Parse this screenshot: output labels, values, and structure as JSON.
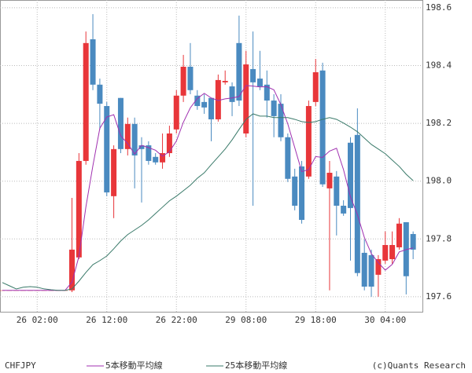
{
  "chart_data": {
    "type": "candlestick",
    "symbol": "CHFJPY",
    "credit": "(c)Quants Research",
    "categories": [
      null,
      null,
      null,
      null,
      null,
      "26 02:00",
      null,
      null,
      null,
      null,
      null,
      null,
      null,
      null,
      null,
      "26 12:00",
      null,
      null,
      null,
      null,
      null,
      null,
      null,
      null,
      null,
      "26 22:00",
      null,
      null,
      null,
      null,
      null,
      null,
      null,
      null,
      null,
      "29 08:00",
      null,
      null,
      null,
      null,
      null,
      null,
      null,
      null,
      null,
      "29 18:00",
      null,
      null,
      null,
      null,
      null,
      null,
      null,
      null,
      null,
      "30 04:00",
      null,
      null,
      null,
      null
    ],
    "open": [
      197.622,
      197.622,
      197.622,
      197.622,
      197.622,
      197.622,
      197.622,
      197.622,
      197.622,
      197.622,
      197.622,
      197.736,
      198.07,
      198.491,
      198.334,
      198.26,
      197.948,
      198.288,
      198.111,
      198.198,
      198.124,
      198.124,
      198.084,
      198.065,
      198.097,
      198.179,
      198.296,
      198.396,
      198.296,
      198.274,
      198.288,
      198.214,
      198.342,
      198.328,
      198.478,
      198.165,
      198.388,
      198.355,
      198.334,
      198.279,
      198.268,
      198.152,
      198.016,
      198.051,
      198.016,
      198.274,
      198.383,
      197.975,
      198.016,
      197.915,
      198.133,
      198.16,
      197.752,
      197.744,
      197.676,
      197.725,
      197.73,
      197.771,
      197.858,
      197.817
    ],
    "high": [
      197.622,
      197.622,
      197.622,
      197.622,
      197.622,
      197.622,
      197.622,
      197.622,
      197.622,
      197.622,
      197.942,
      198.097,
      198.518,
      198.578,
      198.355,
      198.274,
      198.124,
      198.288,
      198.22,
      198.22,
      198.152,
      198.138,
      198.097,
      198.165,
      198.192,
      198.315,
      198.437,
      198.478,
      198.315,
      198.301,
      198.288,
      198.369,
      198.383,
      198.342,
      198.573,
      198.451,
      198.518,
      198.451,
      198.383,
      198.301,
      198.301,
      198.165,
      198.043,
      198.07,
      198.279,
      198.423,
      198.41,
      198.07,
      198.035,
      197.934,
      198.152,
      198.252,
      197.798,
      197.763,
      197.744,
      197.826,
      197.826,
      197.872,
      197.858,
      197.826
    ],
    "low": [
      197.622,
      197.622,
      197.622,
      197.622,
      197.622,
      197.622,
      197.622,
      197.622,
      197.622,
      197.622,
      197.616,
      197.73,
      198.057,
      198.315,
      198.179,
      197.948,
      197.872,
      198.097,
      198.089,
      197.975,
      197.926,
      198.057,
      198.057,
      198.043,
      198.084,
      198.165,
      198.274,
      198.301,
      198.247,
      198.233,
      198.138,
      198.206,
      198.334,
      198.225,
      198.26,
      198.152,
      197.915,
      198.315,
      198.22,
      198.152,
      198.138,
      197.997,
      197.899,
      197.853,
      198.008,
      198.26,
      197.98,
      197.622,
      197.812,
      197.88,
      197.725,
      197.671,
      197.622,
      197.6,
      197.6,
      197.714,
      197.714,
      197.763,
      197.608,
      197.73
    ],
    "close": [
      197.622,
      197.622,
      197.622,
      197.622,
      197.622,
      197.622,
      197.622,
      197.622,
      197.622,
      197.622,
      197.763,
      198.07,
      198.478,
      198.334,
      198.268,
      197.961,
      198.111,
      198.111,
      198.198,
      198.089,
      198.111,
      198.07,
      198.065,
      198.097,
      198.165,
      198.296,
      198.396,
      198.315,
      198.26,
      198.255,
      198.214,
      198.35,
      198.347,
      198.274,
      198.279,
      198.404,
      198.342,
      198.328,
      198.279,
      198.225,
      198.152,
      198.008,
      197.915,
      197.866,
      198.26,
      198.377,
      197.989,
      198.029,
      197.915,
      197.888,
      197.907,
      197.682,
      197.635,
      197.635,
      197.73,
      197.779,
      197.779,
      197.853,
      197.671,
      197.763
    ],
    "up_color": "#e8363a",
    "down_color": "#4a8ac0",
    "series": [
      {
        "name": "5本移動平均線",
        "color": "#a030b0",
        "values": [
          197.622,
          197.622,
          197.622,
          197.622,
          197.622,
          197.622,
          197.622,
          197.622,
          197.622,
          197.622,
          197.65,
          197.74,
          197.911,
          198.053,
          198.183,
          198.222,
          198.23,
          198.157,
          198.13,
          198.094,
          198.124,
          198.116,
          198.107,
          198.086,
          198.102,
          198.139,
          198.204,
          198.254,
          198.286,
          198.304,
          198.288,
          198.279,
          198.285,
          198.288,
          198.293,
          198.331,
          198.329,
          198.326,
          198.327,
          198.316,
          198.265,
          198.198,
          198.116,
          198.033,
          198.04,
          198.085,
          198.082,
          198.104,
          198.114,
          198.04,
          197.946,
          197.884,
          197.805,
          197.749,
          197.718,
          197.692,
          197.712,
          197.755,
          197.763,
          197.769
        ]
      },
      {
        "name": "25本移動平均線",
        "color": "#3a7a6a",
        "values": [
          197.649,
          197.638,
          197.627,
          197.633,
          197.635,
          197.633,
          197.627,
          197.624,
          197.622,
          197.622,
          197.627,
          197.654,
          197.684,
          197.711,
          197.725,
          197.741,
          197.766,
          197.793,
          197.815,
          197.831,
          197.847,
          197.866,
          197.888,
          197.91,
          197.932,
          197.948,
          197.967,
          197.986,
          198.01,
          198.029,
          198.057,
          198.084,
          198.111,
          198.143,
          198.179,
          198.214,
          198.233,
          198.225,
          198.225,
          198.22,
          198.22,
          198.22,
          198.214,
          198.206,
          198.203,
          198.206,
          198.214,
          198.22,
          198.214,
          198.201,
          198.187,
          198.171,
          198.149,
          198.127,
          198.111,
          198.095,
          198.073,
          198.051,
          198.024,
          198.002
        ]
      }
    ],
    "ylim": [
      197.548,
      198.627
    ],
    "yticks": [
      197.6,
      197.8,
      {
        "value": 198,
        "label": "198.0"
      },
      198.2,
      198.4,
      198.6
    ],
    "grid": true
  }
}
